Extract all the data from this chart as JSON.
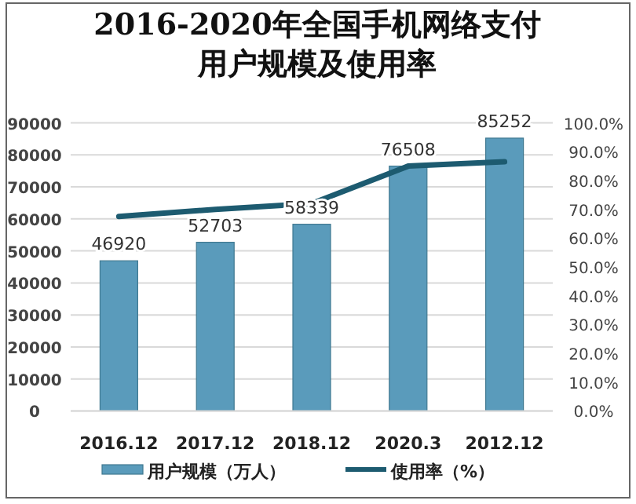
{
  "chart_data": {
    "type": "bar",
    "title": "2016-2020年全国手机网络支付用户规模及使用率",
    "categories": [
      "2016.12",
      "2017.12",
      "2018.12",
      "2020.3",
      "2012.12"
    ],
    "series": [
      {
        "name": "用户规模（万人）",
        "color": "#5a9bbb",
        "values": [
          46920,
          52703,
          58339,
          76508,
          85252
        ],
        "data_labels": true
      },
      {
        "name": "使用率（%）",
        "type": "line",
        "axis": "y2",
        "color": "#1d5b70",
        "values": [
          67.5,
          70.0,
          72.0,
          85.0,
          86.5
        ]
      }
    ],
    "ylim": [
      0,
      90000
    ],
    "yticks": [
      0,
      10000,
      20000,
      30000,
      40000,
      50000,
      60000,
      70000,
      80000,
      90000
    ],
    "y2lim": [
      0,
      100
    ],
    "y2ticks": [
      {
        "value": 0,
        "label": "0.0%"
      },
      {
        "value": 10,
        "label": "10.0%"
      },
      {
        "value": 20,
        "label": "20.0%"
      },
      {
        "value": 30,
        "label": "30.0%"
      },
      {
        "value": 40,
        "label": "40.0%"
      },
      {
        "value": 50,
        "label": "50.0%"
      },
      {
        "value": 60,
        "label": "60.0%"
      },
      {
        "value": 70,
        "label": "70.0%"
      },
      {
        "value": 80,
        "label": "80.0%"
      },
      {
        "value": 90,
        "label": "90.0%"
      },
      {
        "value": 100,
        "label": "100.0%"
      }
    ],
    "grid": "y",
    "legend": "bottom",
    "marker": "none"
  }
}
